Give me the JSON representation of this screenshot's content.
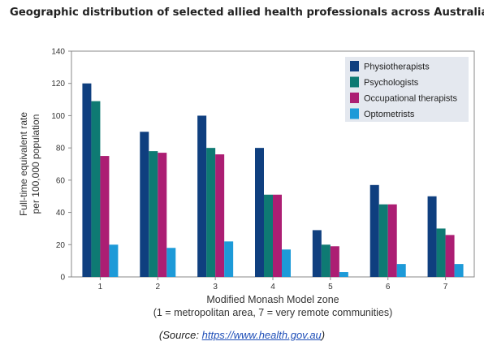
{
  "title": "Geographic distribution of selected allied health professionals across Australia",
  "source": {
    "prefix": "(Source: ",
    "link": "https://www.health.gov.au",
    "suffix": ")"
  },
  "chart_data": {
    "type": "bar",
    "categories": [
      "1",
      "2",
      "3",
      "4",
      "5",
      "6",
      "7"
    ],
    "series": [
      {
        "name": "Physiotherapists",
        "color": "#0f3f7f",
        "values": [
          120,
          90,
          100,
          80,
          29,
          57,
          50
        ]
      },
      {
        "name": "Psychologists",
        "color": "#0e7a73",
        "values": [
          109,
          78,
          80,
          51,
          20,
          45,
          30
        ]
      },
      {
        "name": "Occupational therapists",
        "color": "#ac1e73",
        "values": [
          75,
          77,
          76,
          51,
          19,
          45,
          26
        ]
      },
      {
        "name": "Optometrists",
        "color": "#1d9ad8",
        "values": [
          20,
          18,
          22,
          17,
          3,
          8,
          8
        ]
      }
    ],
    "xlabel": "Modified Monash Model zone",
    "xlabel_note": "(1 = metropolitan area, 7 = very remote communities)",
    "ylabel_line1": "Full-time equivalent rate",
    "ylabel_line2": "per 100,000 population",
    "ylim": [
      0,
      140
    ],
    "yticks": [
      0,
      20,
      40,
      60,
      80,
      100,
      120,
      140
    ],
    "legend_position": "top-right",
    "grid": false
  }
}
